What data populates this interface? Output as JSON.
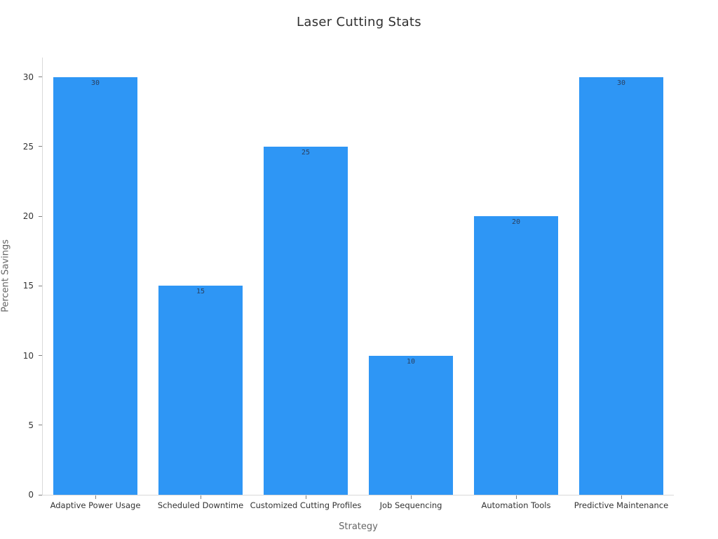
{
  "chart_data": {
    "type": "bar",
    "title": "Laser Cutting Stats",
    "xlabel": "Strategy",
    "ylabel": "Percent Savings",
    "categories": [
      "Adaptive Power Usage",
      "Scheduled Downtime",
      "Customized Cutting Profiles",
      "Job Sequencing",
      "Automation Tools",
      "Predictive Maintenance"
    ],
    "values": [
      30,
      15,
      25,
      10,
      20,
      30
    ],
    "yticks": [
      0,
      5,
      10,
      15,
      20,
      25,
      30
    ],
    "ylim": [
      0,
      31.4
    ],
    "grid": false,
    "legend": false,
    "colors": {
      "bar": "#2e96f5",
      "bar_label": "#2a3f5f",
      "axis_line": "#d9d9d9",
      "tick_mark": "#808080",
      "tick_label": "#333333",
      "axis_title": "#666666",
      "title": "#2f2f2f",
      "background": "#ffffff"
    }
  }
}
